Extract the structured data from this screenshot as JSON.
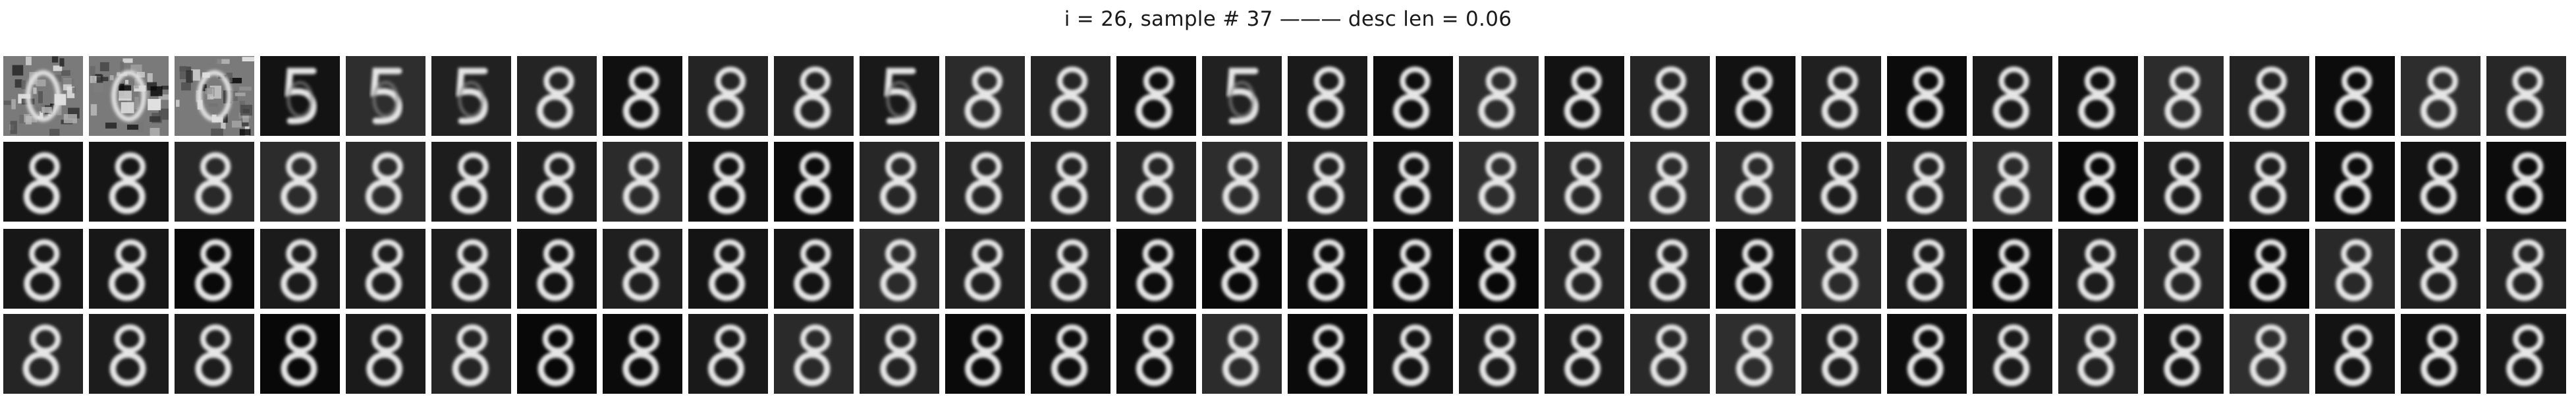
{
  "figure": {
    "title": "i = 26, sample # 37 ——— desc len = 0.06"
  },
  "grid": {
    "rows": 4,
    "cols": 30,
    "panel_content": "reconstructed digit image",
    "colors": {
      "background": "#ffffff",
      "panel_dark": "#0c0c0c",
      "digit_stroke": "#e6e6e6"
    }
  },
  "rows": [
    {
      "name": "row-1",
      "glyphs": [
        "noise",
        "noise",
        "noise",
        "5",
        "5",
        "5",
        "8",
        "8",
        "8",
        "8",
        "5",
        "8",
        "8",
        "8",
        "5",
        "8",
        "8",
        "8",
        "8",
        "8",
        "8",
        "8",
        "8",
        "8",
        "8",
        "8",
        "8",
        "8",
        "8",
        "8"
      ]
    },
    {
      "name": "row-2",
      "glyphs": [
        "8",
        "8",
        "8",
        "8",
        "8",
        "8",
        "8",
        "8",
        "8",
        "8",
        "8",
        "8",
        "8",
        "8",
        "8",
        "8",
        "8",
        "8",
        "8",
        "8",
        "8",
        "8",
        "8",
        "8",
        "8",
        "8",
        "8",
        "8",
        "8",
        "8"
      ]
    },
    {
      "name": "row-3",
      "glyphs": [
        "8",
        "8",
        "8",
        "8",
        "8",
        "8",
        "8",
        "8",
        "8",
        "8",
        "8",
        "8",
        "8",
        "8",
        "8",
        "8",
        "8",
        "8",
        "8",
        "8",
        "8",
        "8",
        "8",
        "8",
        "8",
        "8",
        "8",
        "8",
        "8",
        "8"
      ]
    },
    {
      "name": "row-4",
      "glyphs": [
        "8",
        "8",
        "8",
        "8",
        "8",
        "8",
        "8",
        "8",
        "8",
        "8",
        "8",
        "8",
        "8",
        "8",
        "8",
        "8",
        "8",
        "8",
        "8",
        "8",
        "8",
        "8",
        "8",
        "8",
        "8",
        "8",
        "8",
        "8",
        "8",
        "8"
      ]
    }
  ]
}
